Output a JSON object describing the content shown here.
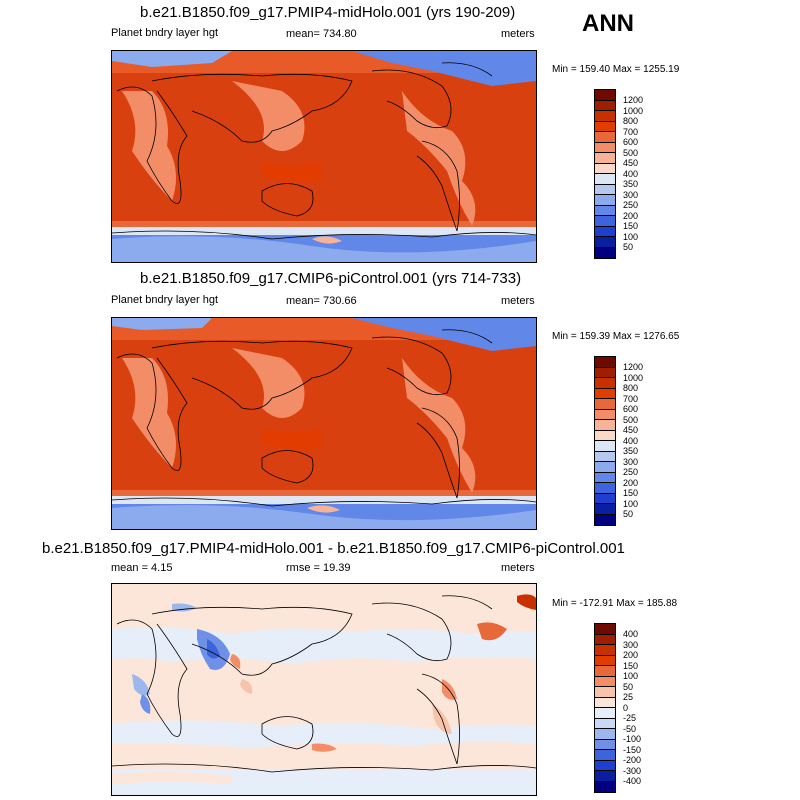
{
  "season": "ANN",
  "panels": [
    {
      "title": "b.e21.B1850.f09_g17.PMIP4-midHolo.001 (yrs 190-209)",
      "left_label": "Planet bndry layer hgt",
      "mid_label": "mean= 734.80",
      "right_label": "meters",
      "minmax": "Min = 159.40 Max = 1255.19",
      "levels": [
        "1200",
        "1000",
        "800",
        "700",
        "600",
        "500",
        "450",
        "400",
        "350",
        "300",
        "250",
        "200",
        "150",
        "100",
        "50"
      ],
      "colors": [
        "#6e0a00",
        "#a01e00",
        "#c93000",
        "#e33c00",
        "#e8683a",
        "#f28d68",
        "#f7b398",
        "#fbd9c8",
        "#dce6f5",
        "#b5c9f0",
        "#8cabee",
        "#6188e8",
        "#3c64dc",
        "#1f3fd0",
        "#0a1ea0",
        "#000080"
      ]
    },
    {
      "title": "b.e21.B1850.f09_g17.CMIP6-piControl.001 (yrs 714-733)",
      "left_label": "Planet bndry layer hgt",
      "mid_label": "mean= 730.66",
      "right_label": "meters",
      "minmax": "Min = 159.39 Max = 1276.65",
      "levels": [
        "1200",
        "1000",
        "800",
        "700",
        "600",
        "500",
        "450",
        "400",
        "350",
        "300",
        "250",
        "200",
        "150",
        "100",
        "50"
      ],
      "colors": [
        "#6e0a00",
        "#a01e00",
        "#c93000",
        "#e33c00",
        "#e8683a",
        "#f28d68",
        "#f7b398",
        "#fbd9c8",
        "#dce6f5",
        "#b5c9f0",
        "#8cabee",
        "#6188e8",
        "#3c64dc",
        "#1f3fd0",
        "#0a1ea0",
        "#000080"
      ]
    },
    {
      "title": "b.e21.B1850.f09_g17.PMIP4-midHolo.001 - b.e21.B1850.f09_g17.CMIP6-piControl.001",
      "left_label": "mean =   4.15",
      "mid_label": "rmse =  19.39",
      "right_label": "meters",
      "minmax": "Min = -172.91 Max = 185.88",
      "levels": [
        "400",
        "300",
        "200",
        "150",
        "100",
        "50",
        "25",
        "0",
        "-25",
        "-50",
        "-100",
        "-150",
        "-200",
        "-300",
        "-400"
      ],
      "colors": [
        "#6e0a00",
        "#a01e00",
        "#c93000",
        "#e33c00",
        "#e8683a",
        "#f28d68",
        "#f7c4aa",
        "#fce6da",
        "#e6eefa",
        "#c8d8f5",
        "#9cb6ee",
        "#6e90e6",
        "#3c64dc",
        "#1f3fd0",
        "#0a1ea0",
        "#000080"
      ]
    }
  ]
}
